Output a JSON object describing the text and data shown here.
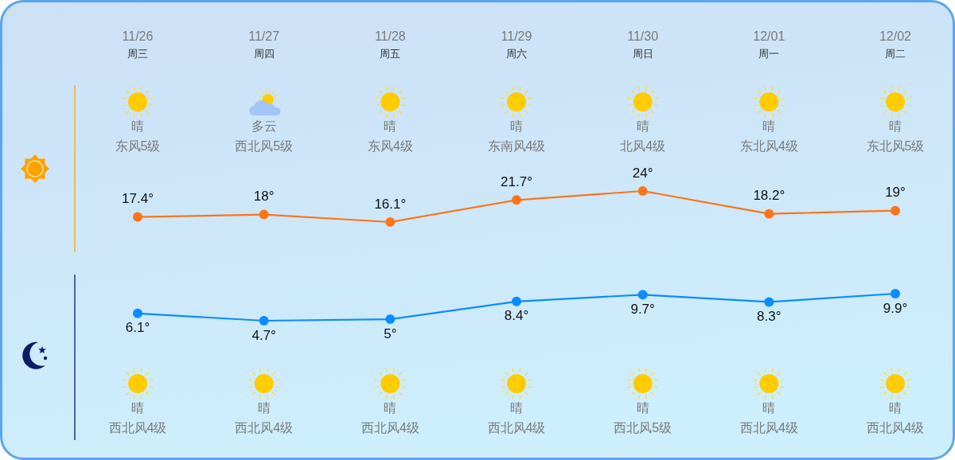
{
  "chart_data": [
    {
      "type": "line",
      "categories": [
        "11/26",
        "11/27",
        "11/28",
        "11/29",
        "11/30",
        "12/01",
        "12/02"
      ],
      "values": [
        17.4,
        18,
        16.1,
        21.7,
        24,
        18.2,
        19
      ],
      "value_labels": [
        "17.4°",
        "18°",
        "16.1°",
        "21.7°",
        "24°",
        "18.2°",
        "19°"
      ],
      "color": "#ff7417",
      "marker": "circle",
      "annotations": [
        "周三",
        "周四",
        "周五",
        "周六",
        "周日",
        "周一",
        "周二",
        "晴",
        "多云",
        "晴",
        "晴",
        "晴",
        "晴",
        "晴",
        "东风5级",
        "西北风5级",
        "东风4级",
        "东南风4级",
        "北风4级",
        "东北风4级",
        "东北风5级"
      ]
    },
    {
      "type": "line",
      "categories": [
        null,
        null,
        null,
        null,
        null,
        null,
        null
      ],
      "values": [
        6.1,
        4.7,
        5,
        8.4,
        9.7,
        8.3,
        9.9
      ],
      "value_labels": [
        "6.1°",
        "4.7°",
        "5°",
        "8.4°",
        "9.7°",
        "8.3°",
        "9.9°"
      ],
      "color": "#0a8cff",
      "marker": "circle",
      "annotations": [
        "晴",
        "晴",
        "晴",
        "晴",
        "晴",
        "晴",
        "晴",
        "西北风4级",
        "西北风4级",
        "西北风4级",
        "西北风4级",
        "西北风5级",
        "西北风4级",
        "西北风4级"
      ]
    }
  ]
}
